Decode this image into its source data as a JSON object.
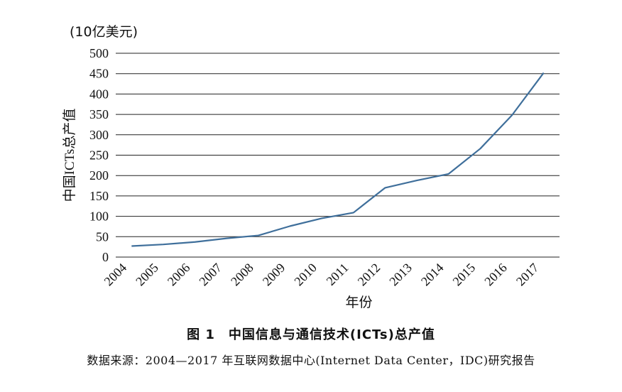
{
  "chart_data": {
    "type": "line",
    "unit_label": "(10亿美元)",
    "ylabel": "中国ICTs总产值",
    "xlabel": "年份",
    "categories": [
      "2004",
      "2005",
      "2006",
      "2007",
      "2008",
      "2009",
      "2010",
      "2011",
      "2012",
      "2013",
      "2014",
      "2015",
      "2016",
      "2017"
    ],
    "series": [
      {
        "values": [
          27,
          31,
          37,
          46,
          53,
          76,
          95,
          109,
          170,
          188,
          204,
          266,
          348,
          452
        ]
      }
    ],
    "ylim": [
      0,
      500
    ],
    "yticks": [
      0,
      50,
      100,
      150,
      200,
      250,
      300,
      350,
      400,
      450,
      500
    ],
    "grid": true,
    "line_color": "#3f6f9b"
  },
  "caption": "图 1　中国信息与通信技术(ICTs)总产值",
  "source": "数据来源：2004—2017 年互联网数据中心(Internet Data Center，IDC)研究报告"
}
